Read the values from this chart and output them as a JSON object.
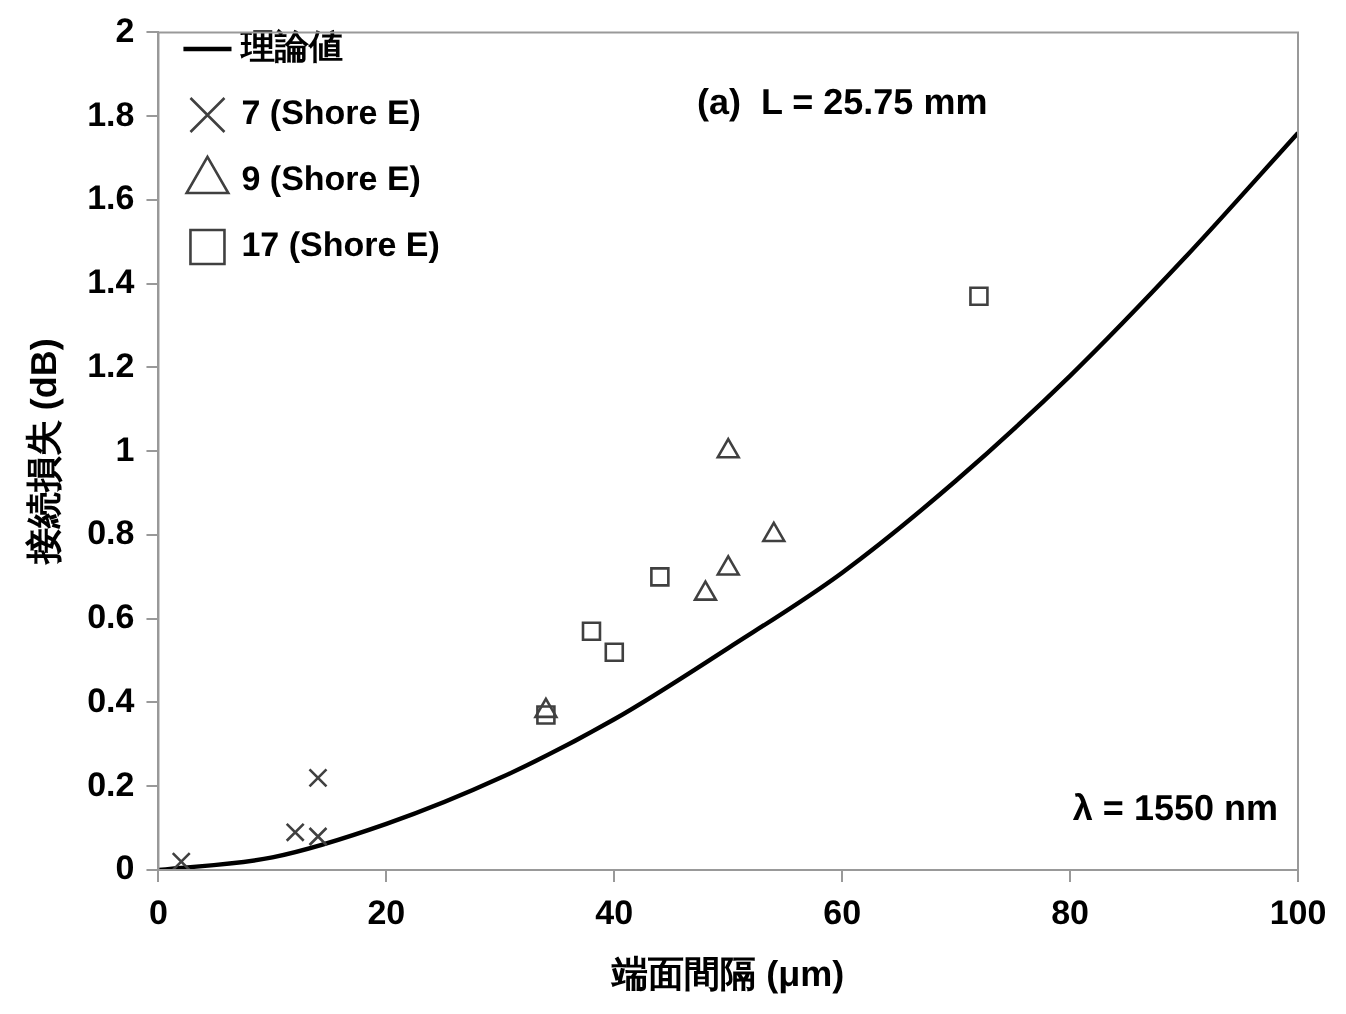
{
  "chart_data": {
    "type": "scatter",
    "xlabel": "端面間隔 (μm)",
    "ylabel": "接続損失 (dB)",
    "xlim": [
      0,
      100
    ],
    "xticks": [
      0,
      20,
      40,
      60,
      80,
      100
    ],
    "ylim": [
      0,
      2
    ],
    "yticks": [
      0,
      0.2,
      0.4,
      0.6,
      0.8,
      1,
      1.2,
      1.4,
      1.6,
      1.8,
      2
    ],
    "grid": false,
    "legend": "top left",
    "annotations": [
      "(a)  L = 25.75 mm",
      "λ = 1550 nm"
    ],
    "series": [
      {
        "name": "理論値",
        "type": "line",
        "color": "#000000",
        "marker": "none",
        "line_style": "solid",
        "x": [
          0,
          10,
          20,
          30,
          40,
          50,
          60,
          70,
          80,
          90,
          100
        ],
        "values": [
          0,
          0.03,
          0.11,
          0.22,
          0.36,
          0.53,
          0.71,
          0.93,
          1.18,
          1.46,
          1.76
        ]
      },
      {
        "name": "7 (Shore E)",
        "color": "#404040",
        "marker": "cross",
        "x": [
          2,
          12,
          14,
          14
        ],
        "values": [
          0.02,
          0.09,
          0.08,
          0.22
        ]
      },
      {
        "name": "9 (Shore E)",
        "color": "#404040",
        "marker": "triangle",
        "x": [
          34,
          48,
          50,
          50,
          54
        ],
        "values": [
          0.38,
          0.66,
          0.72,
          1.0,
          0.8
        ]
      },
      {
        "name": "17 (Shore E)",
        "color": "#404040",
        "marker": "square",
        "x": [
          34,
          38,
          40,
          44,
          72
        ],
        "values": [
          0.37,
          0.57,
          0.52,
          0.7,
          1.37
        ]
      }
    ]
  }
}
